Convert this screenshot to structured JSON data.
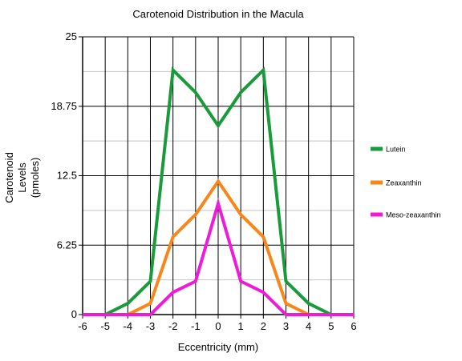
{
  "chart_data": {
    "type": "line",
    "title": "Carotenoid Distribution in the Macula",
    "xlabel": "Eccentricity (mm)",
    "ylabel_lines": [
      "Carotenoid",
      "Levels",
      "(pmoles)"
    ],
    "x": [
      -6,
      -5,
      -4,
      -3,
      -2,
      -1,
      0,
      1,
      2,
      3,
      4,
      5,
      6
    ],
    "xlim": [
      -6,
      6
    ],
    "ylim": [
      0,
      25
    ],
    "x_ticks": [
      "-6",
      "-5",
      "-4",
      "-3",
      "-2",
      "-1",
      "0",
      "1",
      "2",
      "3",
      "4",
      "5",
      "6"
    ],
    "y_ticks": [
      {
        "value": 0,
        "label": "0"
      },
      {
        "value": 6.25,
        "label": "6.25"
      },
      {
        "value": 12.5,
        "label": "12.5"
      },
      {
        "value": 18.75,
        "label": "18.75"
      },
      {
        "value": 25,
        "label": "25"
      }
    ],
    "y_minor_ticks": [
      3.125,
      9.375,
      15.625,
      21.875
    ],
    "grid": true,
    "legend_position": "right",
    "series": [
      {
        "name": "Lutein",
        "color": "#1a9a3a",
        "values": [
          0,
          0,
          1,
          3,
          22,
          20,
          17,
          20,
          22,
          3,
          1,
          0,
          0
        ]
      },
      {
        "name": "Zeaxanthin",
        "color": "#f7871a",
        "values": [
          0,
          0,
          0,
          1,
          7,
          9,
          12,
          9,
          7,
          1,
          0,
          0,
          0
        ]
      },
      {
        "name": "Meso-zeaxanthin",
        "color": "#ee1cd8",
        "values": [
          0,
          0,
          0,
          0,
          2,
          3,
          10,
          3,
          2,
          0,
          0,
          0,
          0
        ]
      }
    ]
  }
}
